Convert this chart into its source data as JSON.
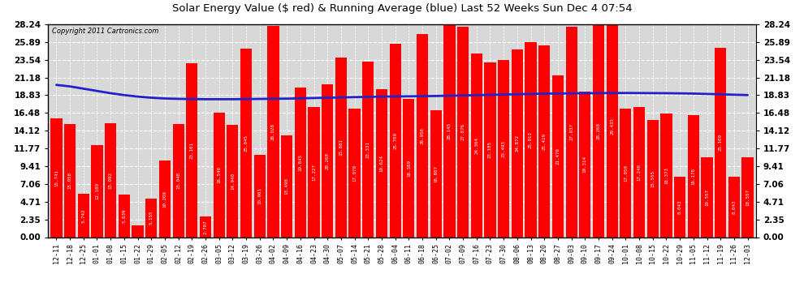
{
  "title": "Solar Energy Value ($ red) & Running Average (blue) Last 52 Weeks Sun Dec 4 07:54",
  "copyright": "Copyright 2011 Cartronics.com",
  "bar_color": "#ff0000",
  "line_color": "#2222cc",
  "background_color": "#ffffff",
  "plot_bg_color": "#d8d8d8",
  "grid_color": "#ffffff",
  "ylim": [
    0,
    28.24
  ],
  "yticks": [
    0.0,
    2.35,
    4.71,
    7.06,
    9.41,
    11.77,
    14.12,
    16.48,
    18.83,
    21.18,
    23.54,
    25.89,
    28.24
  ],
  "categories": [
    "12-11",
    "12-18",
    "12-25",
    "01-01",
    "01-08",
    "01-15",
    "01-22",
    "01-29",
    "02-05",
    "02-12",
    "02-19",
    "02-26",
    "03-05",
    "03-12",
    "03-19",
    "03-26",
    "04-02",
    "04-09",
    "04-16",
    "04-23",
    "04-30",
    "05-07",
    "05-14",
    "05-21",
    "05-28",
    "06-04",
    "06-11",
    "06-18",
    "06-25",
    "07-02",
    "07-09",
    "07-16",
    "07-23",
    "07-30",
    "08-06",
    "08-13",
    "08-20",
    "08-27",
    "09-03",
    "09-10",
    "09-17",
    "09-24",
    "10-01",
    "10-08",
    "10-15",
    "10-22",
    "10-29",
    "11-05",
    "11-12",
    "11-19",
    "11-26",
    "12-03"
  ],
  "values": [
    15.741,
    15.058,
    5.742,
    12.18,
    15.092,
    5.639,
    1.577,
    5.155,
    10.206,
    15.048,
    23.101,
    2.707,
    16.54,
    14.94,
    25.045,
    10.961,
    28.028,
    13.498,
    19.845,
    17.227,
    20.268,
    23.881,
    17.07,
    23.331,
    19.624,
    25.709,
    18.389,
    26.956,
    16.807,
    28.145,
    27.876,
    24.364,
    23.185,
    23.493,
    24.872,
    25.912,
    25.419,
    21.476,
    27.937,
    19.314,
    28.268,
    29.435,
    17.05,
    17.246,
    15.555,
    16.373,
    8.043,
    16.178,
    10.557,
    25.109,
    8.043,
    10.557
  ],
  "running_avg": [
    20.2,
    20.0,
    19.7,
    19.4,
    19.1,
    18.85,
    18.65,
    18.5,
    18.4,
    18.35,
    18.32,
    18.3,
    18.3,
    18.3,
    18.32,
    18.34,
    18.36,
    18.38,
    18.42,
    18.46,
    18.5,
    18.54,
    18.58,
    18.62,
    18.65,
    18.67,
    18.69,
    18.71,
    18.73,
    18.77,
    18.8,
    18.84,
    18.88,
    18.92,
    18.96,
    19.0,
    19.04,
    19.06,
    19.08,
    19.1,
    19.11,
    19.12,
    19.13,
    19.12,
    19.11,
    19.1,
    19.08,
    19.05,
    19.0,
    18.95,
    18.9,
    18.85
  ]
}
